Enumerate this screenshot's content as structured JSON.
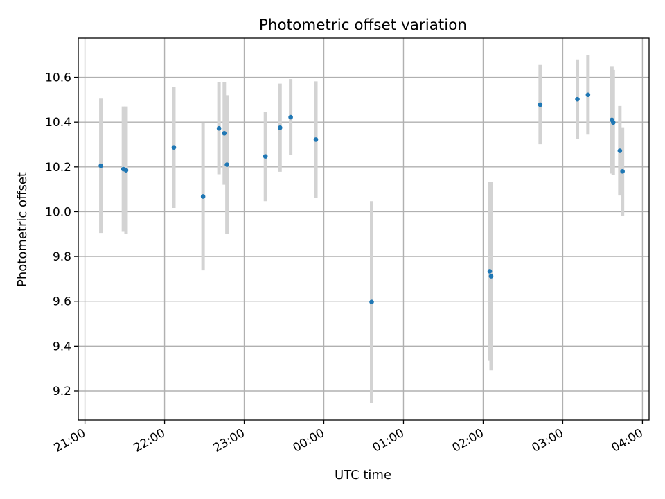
{
  "chart_data": {
    "type": "scatter",
    "title": "Photometric offset variation",
    "xlabel": "UTC time",
    "ylabel": "Photometric offset",
    "grid": true,
    "x_range": [
      "20:55",
      "04:05"
    ],
    "x_ticks": [
      "21:00",
      "22:00",
      "23:00",
      "00:00",
      "01:00",
      "02:00",
      "03:00",
      "04:00"
    ],
    "ylim": [
      9.07,
      10.775
    ],
    "y_ticks": [
      "9.2",
      "9.4",
      "9.6",
      "9.8",
      "10.0",
      "10.2",
      "10.4",
      "10.6"
    ],
    "colors": {
      "points": "#1f77b4",
      "error_bars": "#d3d3d3"
    },
    "series": [
      {
        "points": [
          {
            "x": "21:12",
            "y": 10.205,
            "err": 0.3
          },
          {
            "x": "21:29",
            "y": 10.19,
            "err": 0.28
          },
          {
            "x": "21:31",
            "y": 10.185,
            "err": 0.285
          },
          {
            "x": "22:07",
            "y": 10.287,
            "err": 0.27
          },
          {
            "x": "22:29",
            "y": 10.068,
            "err": 0.33
          },
          {
            "x": "22:41",
            "y": 10.372,
            "err": 0.205
          },
          {
            "x": "22:45",
            "y": 10.35,
            "err": 0.23
          },
          {
            "x": "22:47",
            "y": 10.21,
            "err": 0.31
          },
          {
            "x": "23:16",
            "y": 10.247,
            "err": 0.2
          },
          {
            "x": "23:27",
            "y": 10.375,
            "err": 0.197
          },
          {
            "x": "23:35",
            "y": 10.422,
            "err": 0.17
          },
          {
            "x": "23:54",
            "y": 10.322,
            "err": 0.26
          },
          {
            "x": "00:36",
            "y": 9.597,
            "err": 0.45
          },
          {
            "x": "02:05",
            "y": 9.734,
            "err": 0.4
          },
          {
            "x": "02:06",
            "y": 9.712,
            "err": 0.42
          },
          {
            "x": "02:43",
            "y": 10.478,
            "err": 0.177
          },
          {
            "x": "03:11",
            "y": 10.502,
            "err": 0.178
          },
          {
            "x": "03:19",
            "y": 10.522,
            "err": 0.178
          },
          {
            "x": "03:37",
            "y": 10.41,
            "err": 0.24
          },
          {
            "x": "03:38",
            "y": 10.398,
            "err": 0.235
          },
          {
            "x": "03:43",
            "y": 10.272,
            "err": 0.2
          },
          {
            "x": "03:45",
            "y": 10.18,
            "err": 0.197
          }
        ]
      }
    ]
  }
}
